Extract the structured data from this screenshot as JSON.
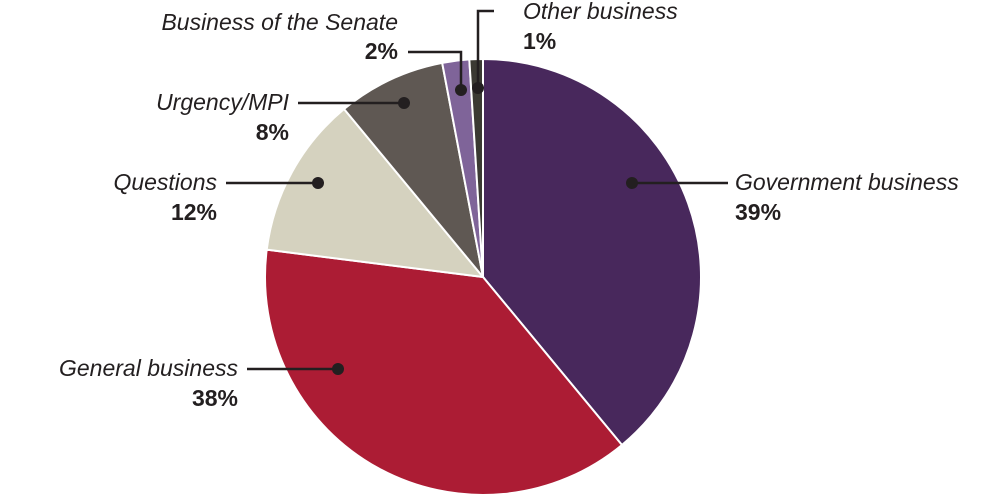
{
  "chart_data": {
    "type": "pie",
    "slices": [
      {
        "label": "Government business",
        "value": 39,
        "display": "39%",
        "color": "#48285c"
      },
      {
        "label": "General business",
        "value": 38,
        "display": "38%",
        "color": "#ac1c34"
      },
      {
        "label": "Questions",
        "value": 12,
        "display": "12%",
        "color": "#d5d2bf"
      },
      {
        "label": "Urgency/MPI",
        "value": 8,
        "display": "8%",
        "color": "#5f5853"
      },
      {
        "label": "Business of the Senate",
        "value": 2,
        "display": "2%",
        "color": "#7f6499"
      },
      {
        "label": "Other business",
        "value": 1,
        "display": "1%",
        "color": "#3b3a33"
      }
    ],
    "start": "12 o'clock",
    "direction": "clockwise",
    "legend": "none (direct labels with leader lines)"
  }
}
